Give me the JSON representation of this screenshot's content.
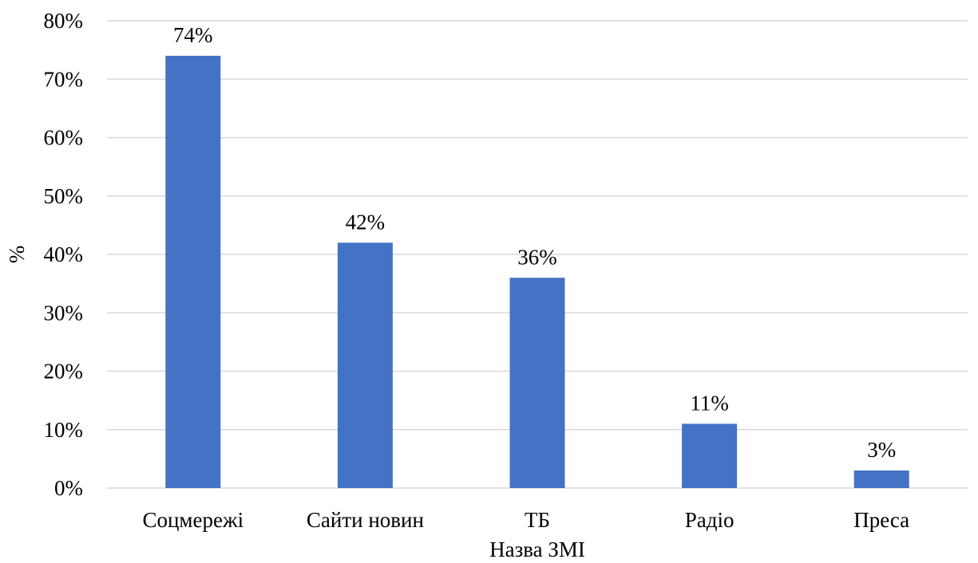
{
  "chart_data": {
    "type": "bar",
    "categories": [
      "Соцмережі",
      "Сайти новин",
      "ТБ",
      "Радіо",
      "Преса"
    ],
    "values": [
      74,
      42,
      36,
      11,
      3
    ],
    "data_labels": [
      "74%",
      "42%",
      "36%",
      "11%",
      "3%"
    ],
    "title": "",
    "xlabel": "Назва ЗМІ",
    "ylabel": "%",
    "ylim": [
      0,
      80
    ],
    "y_ticks": [
      0,
      10,
      20,
      30,
      40,
      50,
      60,
      70,
      80
    ],
    "y_tick_labels": [
      "0%",
      "10%",
      "20%",
      "30%",
      "40%",
      "50%",
      "60%",
      "70%",
      "80%"
    ],
    "grid": true,
    "legend": "none",
    "bar_color": "#4472C4",
    "grid_color": "#D9D9D9"
  }
}
